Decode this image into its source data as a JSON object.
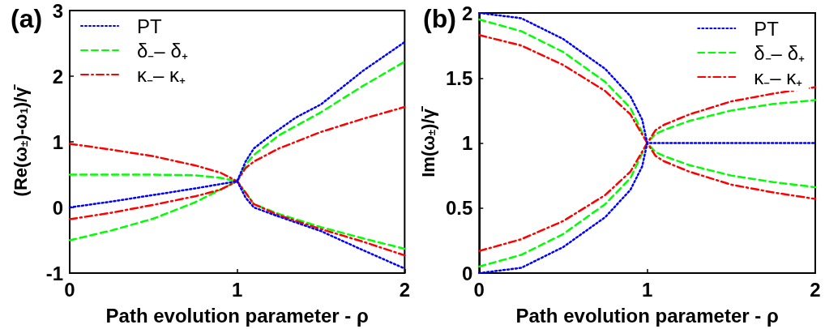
{
  "chart_data": [
    {
      "type": "line",
      "title": "(a)",
      "xlabel": "Path evolution parameter - ρ",
      "ylabel": "(Re(ω$_{±}$)-ω$_{1}$)/γ̄",
      "xlim": [
        0,
        2
      ],
      "xticks": [
        0,
        1,
        2
      ],
      "ylim": [
        -1,
        3
      ],
      "yticks": [
        -1,
        0,
        1,
        2,
        3
      ],
      "grid": false,
      "legend": "top left",
      "marker": "none",
      "series": [
        {
          "name": "PT",
          "color": "#0000ff",
          "line_style": "dotted",
          "x": [
            0,
            0.25,
            0.5,
            0.75,
            1,
            1.05,
            1.1,
            1.19,
            1.35,
            1.5,
            1.75,
            2
          ],
          "values": [
            0,
            0.09,
            0.19,
            0.29,
            0.4,
            0.7,
            0.9,
            1.08,
            1.37,
            1.57,
            2.08,
            2.52
          ]
        },
        {
          "color": "#0000ff",
          "line_style": "dotted",
          "x": [
            1,
            1.05,
            1.1,
            1.25,
            1.5,
            1.75,
            2
          ],
          "values": [
            0.4,
            0.15,
            0,
            -0.14,
            -0.36,
            -0.65,
            -0.93
          ]
        },
        {
          "name": "δ₋– δ₊",
          "color": "#00ff00",
          "line_style": "dashed",
          "x": [
            0,
            0.5,
            0.75,
            0.9,
            1,
            1.05,
            1.1,
            1.25,
            1.5,
            1.75,
            2
          ],
          "values": [
            0.5,
            0.5,
            0.49,
            0.45,
            0.4,
            0.65,
            0.8,
            1.1,
            1.45,
            1.85,
            2.22
          ]
        },
        {
          "color": "#00ff00",
          "line_style": "dashed",
          "x": [
            0,
            0.25,
            0.5,
            0.75,
            1,
            1.1,
            1.25,
            1.5,
            1.75,
            2
          ],
          "values": [
            -0.5,
            -0.35,
            -0.17,
            0.08,
            0.4,
            0.05,
            -0.1,
            -0.3,
            -0.47,
            -0.63
          ]
        },
        {
          "name": "κ₋– κ₊",
          "color": "#ff0000",
          "line_style": "dashdot",
          "x": [
            0,
            0.25,
            0.5,
            0.75,
            0.9,
            1,
            1.05,
            1.1,
            1.25,
            1.5,
            1.75,
            2
          ],
          "values": [
            0.97,
            0.88,
            0.78,
            0.64,
            0.53,
            0.4,
            0.6,
            0.7,
            0.9,
            1.15,
            1.35,
            1.53
          ]
        },
        {
          "color": "#ff0000",
          "line_style": "dashdot",
          "x": [
            0,
            0.25,
            0.5,
            0.75,
            0.9,
            1,
            1.1,
            1.25,
            1.5,
            1.75,
            2
          ],
          "values": [
            -0.18,
            -0.08,
            0.04,
            0.17,
            0.27,
            0.4,
            0.05,
            -0.12,
            -0.33,
            -0.52,
            -0.73
          ]
        }
      ]
    },
    {
      "type": "line",
      "title": "(b)",
      "xlabel": "Path evolution parameter - ρ",
      "ylabel": "Im(ω$_{±}$)/γ̄",
      "xlim": [
        0,
        2
      ],
      "xticks": [
        0,
        1,
        2
      ],
      "ylim": [
        0,
        2
      ],
      "yticks": [
        0,
        0.5,
        1,
        1.5,
        2
      ],
      "grid": false,
      "legend": "top right",
      "marker": "none",
      "series": [
        {
          "name": "PT",
          "color": "#0000ff",
          "line_style": "dotted",
          "x": [
            0,
            0.25,
            0.5,
            0.75,
            0.9,
            0.97,
            1,
            2
          ],
          "values": [
            2,
            1.96,
            1.8,
            1.57,
            1.36,
            1.18,
            1,
            1
          ]
        },
        {
          "color": "#0000ff",
          "line_style": "dotted",
          "x": [
            0,
            0.25,
            0.5,
            0.75,
            0.9,
            0.97,
            1
          ],
          "values": [
            0,
            0.04,
            0.2,
            0.43,
            0.64,
            0.82,
            1
          ]
        },
        {
          "name": "δ₋– δ₊",
          "color": "#00ff00",
          "line_style": "dashed",
          "x": [
            0,
            0.25,
            0.5,
            0.75,
            0.9,
            1,
            1.05,
            1.1,
            1.25,
            1.5,
            1.75,
            2
          ],
          "values": [
            1.95,
            1.86,
            1.7,
            1.47,
            1.27,
            1,
            1.07,
            1.1,
            1.17,
            1.25,
            1.3,
            1.33
          ]
        },
        {
          "color": "#00ff00",
          "line_style": "dashed",
          "x": [
            0,
            0.25,
            0.5,
            0.75,
            0.9,
            1,
            1.05,
            1.1,
            1.25,
            1.5,
            1.75,
            2
          ],
          "values": [
            0.05,
            0.14,
            0.3,
            0.53,
            0.73,
            1,
            0.93,
            0.9,
            0.83,
            0.75,
            0.7,
            0.66
          ]
        },
        {
          "name": "κ₋– κ₊",
          "color": "#ff0000",
          "line_style": "dashdot",
          "x": [
            0,
            0.25,
            0.5,
            0.75,
            0.9,
            1,
            1.05,
            1.1,
            1.25,
            1.5,
            1.75,
            2
          ],
          "values": [
            1.83,
            1.75,
            1.6,
            1.4,
            1.22,
            1,
            1.1,
            1.14,
            1.22,
            1.32,
            1.38,
            1.43
          ]
        },
        {
          "color": "#ff0000",
          "line_style": "dashdot",
          "x": [
            0,
            0.25,
            0.5,
            0.75,
            0.9,
            1,
            1.05,
            1.1,
            1.25,
            1.5,
            1.75,
            2
          ],
          "values": [
            0.17,
            0.26,
            0.4,
            0.6,
            0.78,
            1,
            0.9,
            0.86,
            0.78,
            0.68,
            0.62,
            0.57
          ]
        }
      ]
    }
  ]
}
